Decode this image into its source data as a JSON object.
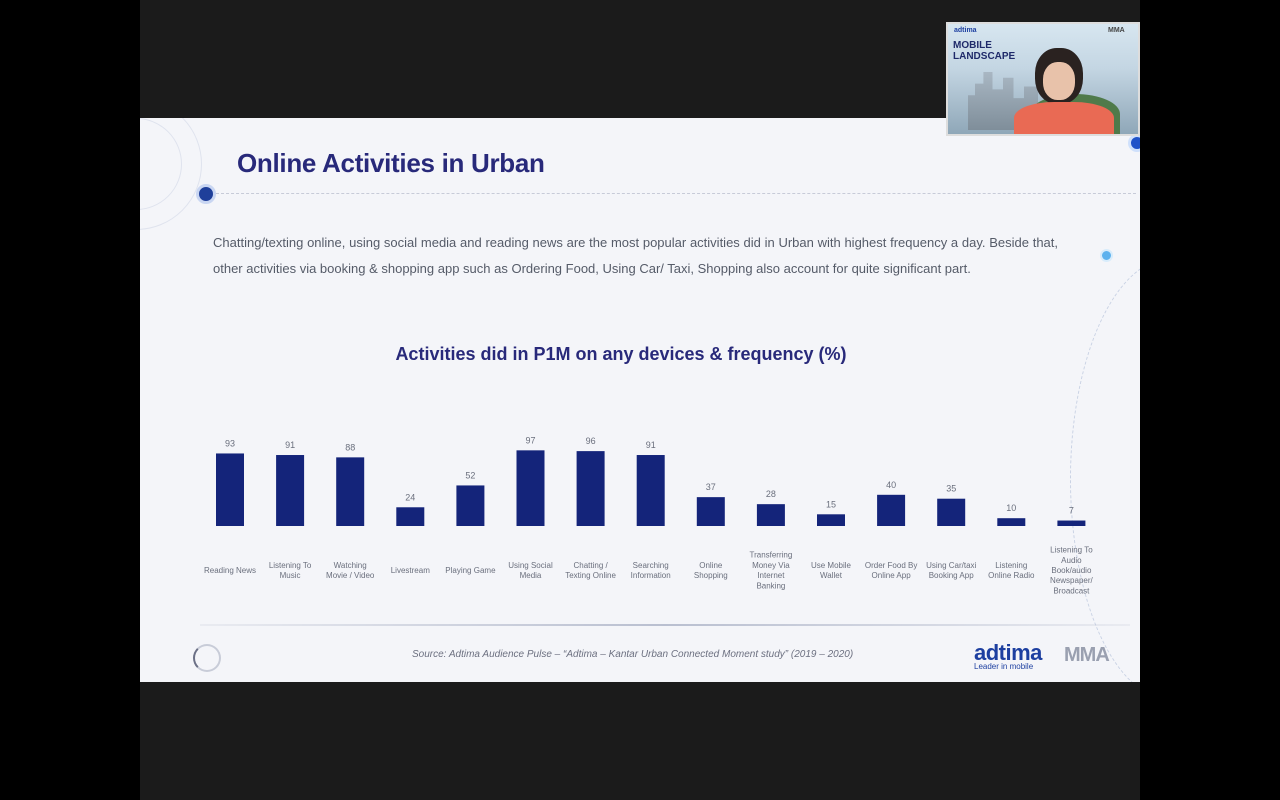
{
  "slide": {
    "title": "Online Activities in Urban",
    "description": "Chatting/texting online, using social media and reading news are the most popular activities did in Urban with highest frequency a day. Beside that, other activities via booking & shopping app such as Ordering Food, Using Car/ Taxi, Shopping also account for quite significant part.",
    "source": "Source: Adtima Audience Pulse – “Adtima – Kantar Urban Connected Moment study” (2019 – 2020)",
    "logo_adtima": "adtima",
    "logo_adtima_tag": "Leader in mobile",
    "logo_mma": "MMA"
  },
  "webcam": {
    "brand": "adtima",
    "title_line1": "MOBILE",
    "title_line2": "LANDSCAPE",
    "mma": "MMA"
  },
  "colors": {
    "bar": "#14247a",
    "title": "#28297a",
    "accent": "#1d3fa0"
  },
  "chart_data": {
    "type": "bar",
    "title": "Activities did in P1M on any devices & frequency (%)",
    "categories": [
      [
        "Reading News"
      ],
      [
        "Listening To",
        "Music"
      ],
      [
        "Watching",
        "Movie / Video"
      ],
      [
        "Livestream"
      ],
      [
        "Playing Game"
      ],
      [
        "Using Social",
        "Media"
      ],
      [
        "Chatting /",
        "Texting Online"
      ],
      [
        "Searching",
        "Information"
      ],
      [
        "Online",
        "Shopping"
      ],
      [
        "Transferring",
        "Money Via",
        "Internet",
        "Banking"
      ],
      [
        "Use Mobile",
        "Wallet"
      ],
      [
        "Order Food By",
        "Online App"
      ],
      [
        "Using Car/taxi",
        "Booking App"
      ],
      [
        "Listening",
        "Online Radio"
      ],
      [
        "Listening To",
        "Audio",
        "Book/audio",
        "Newspaper/",
        "Broadcast"
      ]
    ],
    "values": [
      93,
      91,
      88,
      24,
      52,
      97,
      96,
      91,
      37,
      28,
      15,
      40,
      35,
      10,
      7
    ],
    "ylim": [
      0,
      100
    ],
    "xlabel": "",
    "ylabel": ""
  }
}
